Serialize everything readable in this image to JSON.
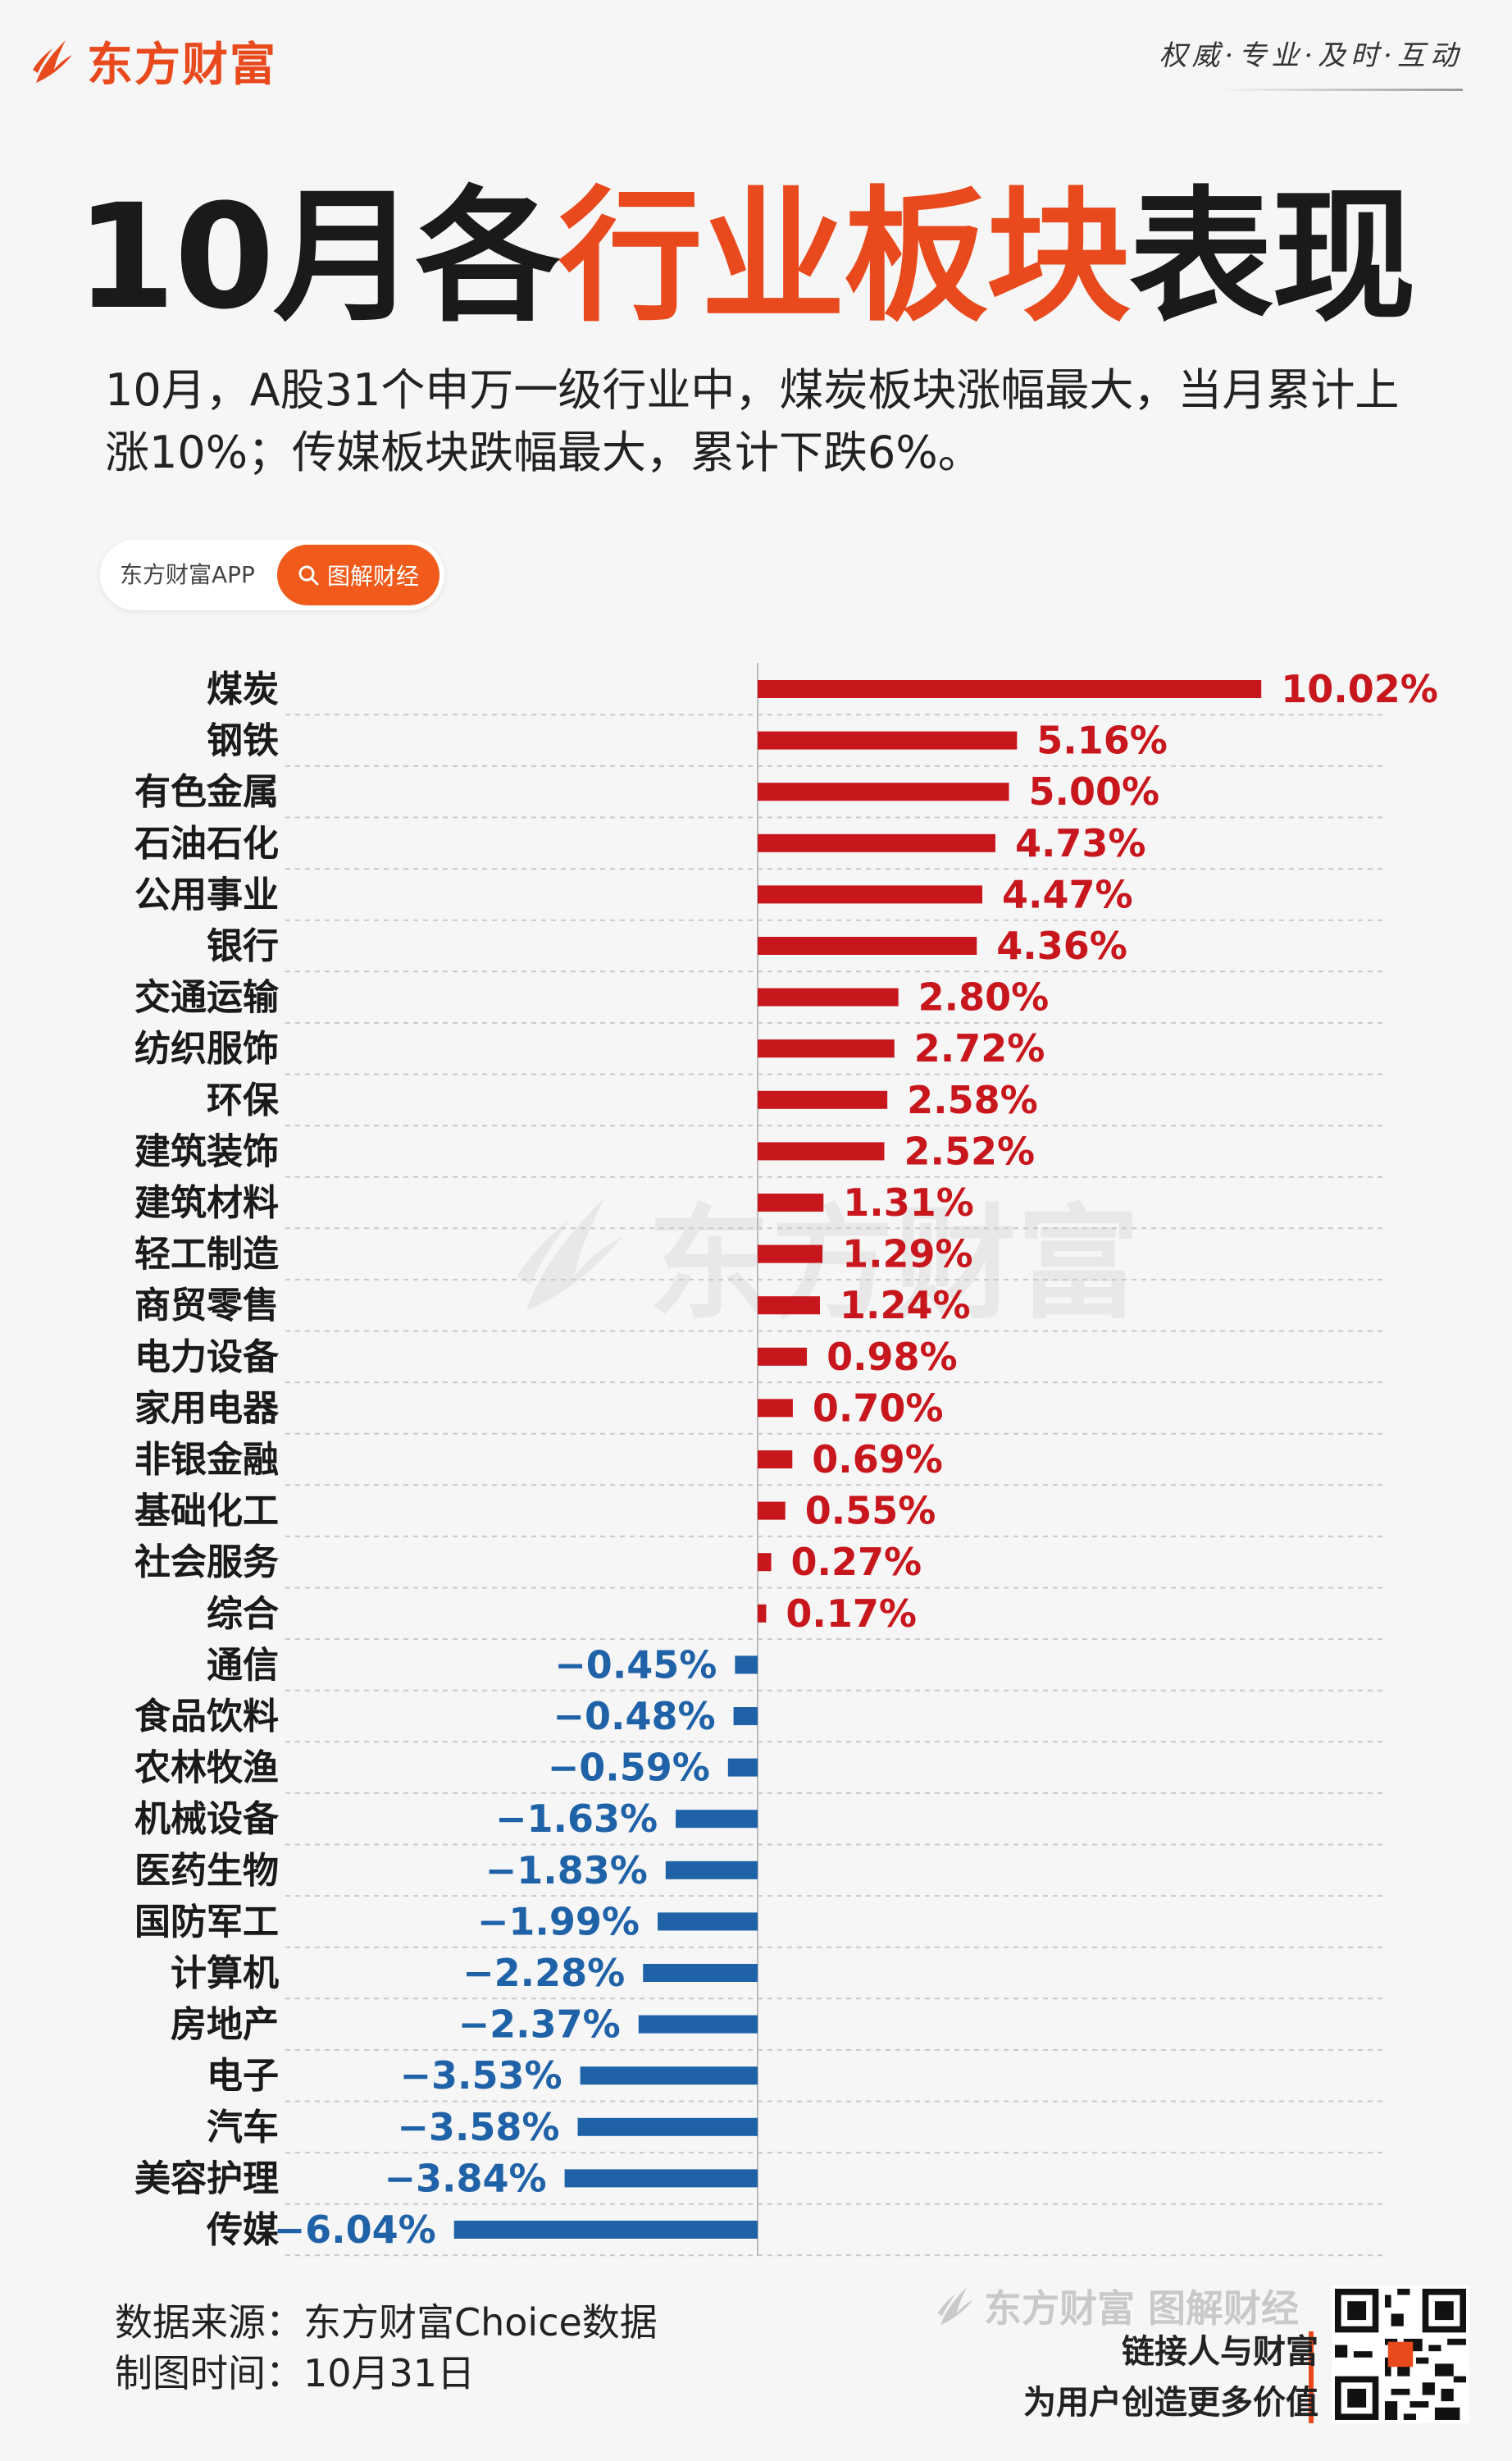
{
  "header": {
    "logo_text": "东方财富",
    "slogan": "权威·专业·及时·互动"
  },
  "title": {
    "part1": "10月各",
    "part2": "行业板块",
    "part3": "表现"
  },
  "subtitle": "10月，A股31个申万一级行业中，煤炭板块涨幅最大，当月累计上涨10%；传媒板块跌幅最大，累计下跌6%。",
  "tag": {
    "app": "东方财富APP",
    "search": "图解财经"
  },
  "watermark": "东方财富",
  "colors": {
    "positive": "#c8161d",
    "negative": "#1f62a8",
    "accent": "#e8491d"
  },
  "chart_data": {
    "type": "bar",
    "orientation": "horizontal",
    "categories": [
      "煤炭",
      "钢铁",
      "有色金属",
      "石油石化",
      "公用事业",
      "银行",
      "交通运输",
      "纺织服饰",
      "环保",
      "建筑装饰",
      "建筑材料",
      "轻工制造",
      "商贸零售",
      "电力设备",
      "家用电器",
      "非银金融",
      "基础化工",
      "社会服务",
      "综合",
      "通信",
      "食品饮料",
      "农林牧渔",
      "机械设备",
      "医药生物",
      "国防军工",
      "计算机",
      "房地产",
      "电子",
      "汽车",
      "美容护理",
      "传媒"
    ],
    "values": [
      10.02,
      5.16,
      5.0,
      4.73,
      4.47,
      4.36,
      2.8,
      2.72,
      2.58,
      2.52,
      1.31,
      1.29,
      1.24,
      0.98,
      0.7,
      0.69,
      0.55,
      0.27,
      0.17,
      -0.45,
      -0.48,
      -0.59,
      -1.63,
      -1.83,
      -1.99,
      -2.28,
      -2.37,
      -3.53,
      -3.58,
      -3.84,
      -6.04
    ],
    "value_labels": [
      "10.02%",
      "5.16%",
      "5.00%",
      "4.73%",
      "4.47%",
      "4.36%",
      "2.80%",
      "2.72%",
      "2.58%",
      "2.52%",
      "1.31%",
      "1.29%",
      "1.24%",
      "0.98%",
      "0.70%",
      "0.69%",
      "0.55%",
      "0.27%",
      "0.17%",
      "−0.45%",
      "−0.48%",
      "−0.59%",
      "−1.63%",
      "−1.83%",
      "−1.99%",
      "−2.28%",
      "−2.37%",
      "−3.53%",
      "−3.58%",
      "−3.84%",
      "−6.04%"
    ],
    "unit": "%",
    "xlim": [
      -6.04,
      10.02
    ],
    "grid": "dashed-horizontal",
    "legend": "none"
  },
  "footer": {
    "source": "数据来源：东方财富Choice数据",
    "date": "制图时间：10月31日",
    "brand": "东方财富 图解财经",
    "tagline1": "链接人与财富",
    "tagline2": "为用户创造更多价值"
  }
}
